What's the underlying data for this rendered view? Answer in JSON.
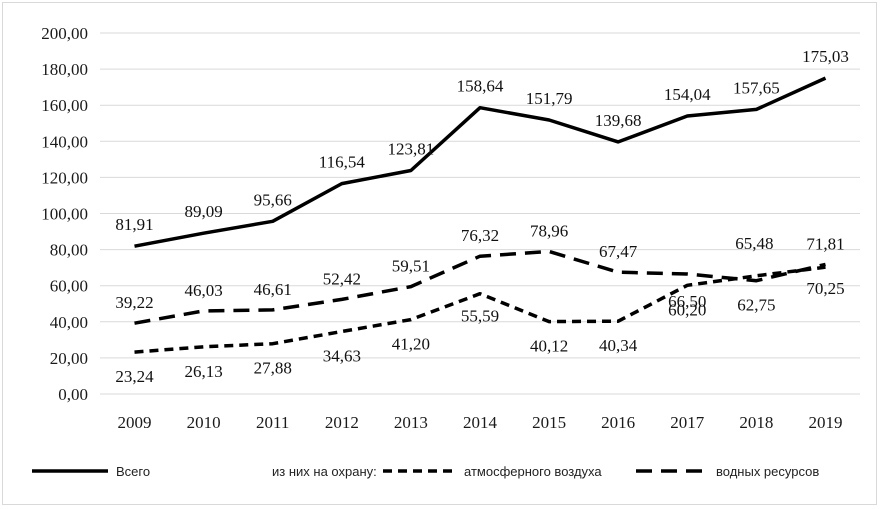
{
  "chart_data": {
    "type": "line",
    "categories": [
      "2009",
      "2010",
      "2011",
      "2012",
      "2013",
      "2014",
      "2015",
      "2016",
      "2017",
      "2018",
      "2019"
    ],
    "ylim": [
      0,
      200
    ],
    "ytick_labels": [
      "0,00",
      "20,00",
      "40,00",
      "60,00",
      "80,00",
      "100,00",
      "120,00",
      "140,00",
      "160,00",
      "180,00",
      "200,00"
    ],
    "grid": true,
    "series": [
      {
        "name": "Всего",
        "style": "solid",
        "values": [
          81.91,
          89.09,
          95.66,
          116.54,
          123.81,
          158.64,
          151.79,
          139.68,
          154.04,
          157.65,
          175.03
        ],
        "labels": [
          "81,91",
          "89,09",
          "95,66",
          "116,54",
          "123,81",
          "158,64",
          "151,79",
          "139,68",
          "154,04",
          "157,65",
          "175,03"
        ]
      },
      {
        "name": "атмосферного  воздуха",
        "style": "dashed-short",
        "values": [
          23.24,
          26.13,
          27.88,
          34.63,
          41.2,
          55.59,
          40.12,
          40.34,
          60.2,
          65.48,
          70.25
        ],
        "labels": [
          "23,24",
          "26,13",
          "27,88",
          "34,63",
          "41,20",
          "55,59",
          "40,12",
          "40,34",
          "60,20",
          "65,48",
          "70,25"
        ]
      },
      {
        "name": "водных ресурсов",
        "style": "dashed-long",
        "values": [
          39.22,
          46.03,
          46.61,
          52.42,
          59.51,
          76.32,
          78.96,
          67.47,
          66.5,
          62.75,
          71.81
        ],
        "labels": [
          "39,22",
          "46,03",
          "46,61",
          "52,42",
          "59,51",
          "76,32",
          "78,96",
          "67,47",
          "66,50",
          "62,75",
          "71,81"
        ]
      }
    ],
    "legend": {
      "placement": "bottom",
      "group_label": "из них на охрану:"
    }
  }
}
